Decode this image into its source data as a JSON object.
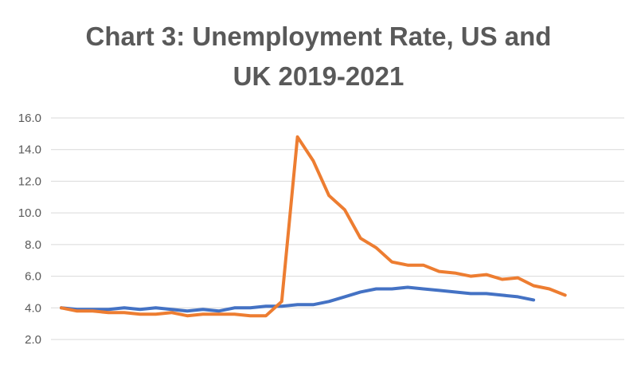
{
  "chart_data": {
    "type": "line",
    "title_lines": [
      "Chart 3: Unemployment Rate, US and",
      "UK 2019-2021"
    ],
    "xlabel": "",
    "ylabel": "",
    "ylim": [
      2.0,
      16.0
    ],
    "y_ticks": [
      "2.0",
      "4.0",
      "6.0",
      "8.0",
      "10.0",
      "12.0",
      "14.0",
      "16.0"
    ],
    "x": [
      1,
      2,
      3,
      4,
      5,
      6,
      7,
      8,
      9,
      10,
      11,
      12,
      13,
      14,
      15,
      16,
      17,
      18,
      19,
      20,
      21,
      22,
      23,
      24,
      25,
      26,
      27,
      28,
      29,
      30,
      31,
      32,
      33,
      34,
      35,
      36
    ],
    "grid": true,
    "legend": "none",
    "series": [
      {
        "color": "#4472c4",
        "values": [
          4.0,
          3.9,
          3.9,
          3.9,
          4.0,
          3.9,
          4.0,
          3.9,
          3.8,
          3.9,
          3.8,
          4.0,
          4.0,
          4.1,
          4.1,
          4.2,
          4.2,
          4.4,
          4.7,
          5.0,
          5.2,
          5.2,
          5.3,
          5.2,
          5.1,
          5.0,
          4.9,
          4.9,
          4.8,
          4.7,
          4.5,
          null,
          null,
          null,
          null,
          null
        ]
      },
      {
        "color": "#ed7d31",
        "values": [
          4.0,
          3.8,
          3.8,
          3.7,
          3.7,
          3.6,
          3.6,
          3.7,
          3.5,
          3.6,
          3.6,
          3.6,
          3.5,
          3.5,
          4.4,
          14.8,
          13.3,
          11.1,
          10.2,
          8.4,
          7.8,
          6.9,
          6.7,
          6.7,
          6.3,
          6.2,
          6.0,
          6.1,
          5.8,
          5.9,
          5.4,
          5.2,
          4.8,
          null,
          null,
          null
        ]
      }
    ]
  }
}
